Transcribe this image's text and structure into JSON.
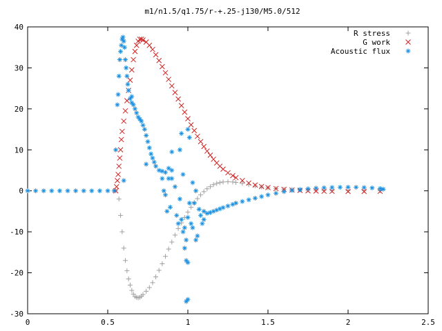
{
  "chart_data": {
    "type": "scatter",
    "title": "m1/n1.5/q1.75/r-+.25-j130/M5.0/512",
    "xlabel": "",
    "ylabel": "",
    "xlim": [
      0,
      2.5
    ],
    "ylim": [
      -30,
      40
    ],
    "xticks": [
      0,
      0.5,
      1,
      1.5,
      2,
      2.5
    ],
    "yticks": [
      -30,
      -20,
      -10,
      0,
      10,
      20,
      30,
      40
    ],
    "xtick_labels": [
      "0",
      "0.5",
      "1",
      "1.5",
      "2",
      "2.5"
    ],
    "ytick_labels": [
      "-30",
      "-20",
      "-10",
      "0",
      "10",
      "20",
      "30",
      "40"
    ],
    "grid": false,
    "legend": "top-right",
    "series": [
      {
        "name": "R stress",
        "marker": "+",
        "color": "#a0a0a0",
        "points": [
          [
            0.55,
            0
          ],
          [
            0.57,
            -2
          ],
          [
            0.58,
            -6
          ],
          [
            0.59,
            -10
          ],
          [
            0.6,
            -14
          ],
          [
            0.61,
            -17
          ],
          [
            0.62,
            -19.5
          ],
          [
            0.63,
            -21.5
          ],
          [
            0.64,
            -23
          ],
          [
            0.65,
            -24.3
          ],
          [
            0.66,
            -25.2
          ],
          [
            0.67,
            -25.8
          ],
          [
            0.68,
            -26
          ],
          [
            0.69,
            -26.1
          ],
          [
            0.7,
            -26
          ],
          [
            0.71,
            -25.7
          ],
          [
            0.72,
            -25.3
          ],
          [
            0.74,
            -24.5
          ],
          [
            0.76,
            -23.6
          ],
          [
            0.78,
            -22.4
          ],
          [
            0.8,
            -21
          ],
          [
            0.82,
            -19.4
          ],
          [
            0.84,
            -17.8
          ],
          [
            0.86,
            -16
          ],
          [
            0.88,
            -14.2
          ],
          [
            0.9,
            -12.5
          ],
          [
            0.92,
            -10.8
          ],
          [
            0.94,
            -9.2
          ],
          [
            0.96,
            -7.8
          ],
          [
            0.98,
            -6.5
          ],
          [
            1.0,
            -5.2
          ],
          [
            1.02,
            -4
          ],
          [
            1.04,
            -2.9
          ],
          [
            1.06,
            -1.9
          ],
          [
            1.08,
            -1
          ],
          [
            1.1,
            -0.2
          ],
          [
            1.12,
            0.5
          ],
          [
            1.14,
            1
          ],
          [
            1.16,
            1.5
          ],
          [
            1.18,
            1.8
          ],
          [
            1.2,
            2
          ],
          [
            1.22,
            2.15
          ],
          [
            1.25,
            2.2
          ],
          [
            1.28,
            2.15
          ],
          [
            1.3,
            2.05
          ],
          [
            1.34,
            1.8
          ],
          [
            1.38,
            1.5
          ],
          [
            1.42,
            1.2
          ],
          [
            1.46,
            0.95
          ],
          [
            1.5,
            0.75
          ],
          [
            1.55,
            0.55
          ],
          [
            1.6,
            0.4
          ],
          [
            1.65,
            0.3
          ],
          [
            1.7,
            0.2
          ],
          [
            1.75,
            0.15
          ],
          [
            1.8,
            0.1
          ],
          [
            1.85,
            0.08
          ],
          [
            1.9,
            0.05
          ],
          [
            2.0,
            0.03
          ],
          [
            2.1,
            0.02
          ],
          [
            2.2,
            0.01
          ]
        ]
      },
      {
        "name": "G work",
        "marker": "x",
        "color": "#d02020",
        "points": [
          [
            0.55,
            0
          ],
          [
            0.555,
            1
          ],
          [
            0.56,
            2.5
          ],
          [
            0.565,
            4
          ],
          [
            0.57,
            6
          ],
          [
            0.575,
            8
          ],
          [
            0.58,
            10
          ],
          [
            0.585,
            12.5
          ],
          [
            0.59,
            14.5
          ],
          [
            0.6,
            17
          ],
          [
            0.61,
            19.5
          ],
          [
            0.62,
            22
          ],
          [
            0.63,
            24.5
          ],
          [
            0.64,
            27
          ],
          [
            0.65,
            29.5
          ],
          [
            0.66,
            32
          ],
          [
            0.67,
            34
          ],
          [
            0.68,
            35.5
          ],
          [
            0.69,
            36.5
          ],
          [
            0.7,
            37
          ],
          [
            0.71,
            37
          ],
          [
            0.72,
            36.8
          ],
          [
            0.74,
            36.3
          ],
          [
            0.76,
            35.5
          ],
          [
            0.78,
            34.5
          ],
          [
            0.8,
            33.2
          ],
          [
            0.82,
            31.8
          ],
          [
            0.84,
            30.3
          ],
          [
            0.86,
            28.8
          ],
          [
            0.88,
            27.2
          ],
          [
            0.9,
            25.6
          ],
          [
            0.92,
            24
          ],
          [
            0.94,
            22.4
          ],
          [
            0.96,
            20.8
          ],
          [
            0.98,
            19.2
          ],
          [
            1.0,
            17.6
          ],
          [
            1.02,
            16.1
          ],
          [
            1.04,
            14.7
          ],
          [
            1.06,
            13.3
          ],
          [
            1.08,
            12
          ],
          [
            1.1,
            10.8
          ],
          [
            1.12,
            9.7
          ],
          [
            1.14,
            8.7
          ],
          [
            1.16,
            7.7
          ],
          [
            1.18,
            6.8
          ],
          [
            1.2,
            6
          ],
          [
            1.22,
            5.3
          ],
          [
            1.25,
            4.4
          ],
          [
            1.28,
            3.7
          ],
          [
            1.3,
            3.2
          ],
          [
            1.34,
            2.5
          ],
          [
            1.38,
            1.9
          ],
          [
            1.42,
            1.4
          ],
          [
            1.46,
            1.05
          ],
          [
            1.5,
            0.8
          ],
          [
            1.55,
            0.55
          ],
          [
            1.6,
            0.35
          ],
          [
            1.65,
            0.2
          ],
          [
            1.7,
            0.1
          ],
          [
            1.75,
            0
          ],
          [
            1.8,
            -0.05
          ],
          [
            1.85,
            -0.1
          ],
          [
            1.9,
            -0.12
          ],
          [
            2.0,
            -0.15
          ],
          [
            2.1,
            -0.15
          ],
          [
            2.2,
            -0.12
          ]
        ]
      },
      {
        "name": "Acoustic flux",
        "marker": "*",
        "color": "#1e90e0",
        "points": [
          [
            0.0,
            0
          ],
          [
            0.05,
            0
          ],
          [
            0.1,
            0
          ],
          [
            0.15,
            0
          ],
          [
            0.2,
            0
          ],
          [
            0.25,
            0
          ],
          [
            0.3,
            0
          ],
          [
            0.35,
            0
          ],
          [
            0.4,
            0
          ],
          [
            0.45,
            0
          ],
          [
            0.5,
            0
          ],
          [
            0.54,
            0
          ],
          [
            0.55,
            10
          ],
          [
            0.56,
            21
          ],
          [
            0.565,
            23.5
          ],
          [
            0.57,
            28
          ],
          [
            0.575,
            32
          ],
          [
            0.58,
            34
          ],
          [
            0.585,
            35.5
          ],
          [
            0.59,
            37
          ],
          [
            0.595,
            37.5
          ],
          [
            0.6,
            36.5
          ],
          [
            0.605,
            35
          ],
          [
            0.61,
            32
          ],
          [
            0.615,
            30
          ],
          [
            0.62,
            28
          ],
          [
            0.625,
            26
          ],
          [
            0.63,
            24.5
          ],
          [
            0.64,
            22.5
          ],
          [
            0.65,
            21.5
          ],
          [
            0.66,
            21
          ],
          [
            0.67,
            20
          ],
          [
            0.68,
            19
          ],
          [
            0.69,
            18
          ],
          [
            0.7,
            17.5
          ],
          [
            0.71,
            17
          ],
          [
            0.72,
            16
          ],
          [
            0.73,
            15
          ],
          [
            0.74,
            13.5
          ],
          [
            0.75,
            12
          ],
          [
            0.76,
            10.5
          ],
          [
            0.77,
            9
          ],
          [
            0.78,
            8
          ],
          [
            0.79,
            7
          ],
          [
            0.8,
            6
          ],
          [
            0.82,
            5
          ],
          [
            0.84,
            4.8
          ],
          [
            0.86,
            4.5
          ],
          [
            0.88,
            5.5
          ],
          [
            0.9,
            5
          ],
          [
            0.6,
            2.5
          ],
          [
            0.65,
            23
          ],
          [
            0.74,
            6.5
          ],
          [
            0.84,
            3
          ],
          [
            0.85,
            0
          ],
          [
            0.86,
            -1
          ],
          [
            0.87,
            -5
          ],
          [
            0.88,
            3
          ],
          [
            0.89,
            -4
          ],
          [
            0.9,
            9.5
          ],
          [
            0.9,
            3
          ],
          [
            0.92,
            1
          ],
          [
            0.93,
            -6
          ],
          [
            0.94,
            -8
          ],
          [
            0.95,
            -2
          ],
          [
            0.96,
            -7
          ],
          [
            0.97,
            -10
          ],
          [
            0.98,
            -9
          ],
          [
            0.98,
            -14
          ],
          [
            0.99,
            -12
          ],
          [
            0.99,
            -17
          ],
          [
            1.0,
            -6.5
          ],
          [
            1.0,
            -17.5
          ],
          [
            1.0,
            -26.5
          ],
          [
            0.99,
            -27
          ],
          [
            1.01,
            -3
          ],
          [
            1.02,
            -8
          ],
          [
            1.03,
            -9
          ],
          [
            1.04,
            -3
          ],
          [
            1.05,
            -12
          ],
          [
            1.06,
            -11
          ],
          [
            1.07,
            -4.5
          ],
          [
            1.08,
            -6
          ],
          [
            1.09,
            -8
          ],
          [
            1.1,
            -7
          ],
          [
            1.0,
            15
          ],
          [
            1.01,
            13
          ],
          [
            0.96,
            14
          ],
          [
            0.95,
            10
          ],
          [
            0.97,
            4
          ],
          [
            1.03,
            2
          ],
          [
            1.05,
            0
          ],
          [
            1.1,
            -5
          ],
          [
            1.12,
            -5.5
          ],
          [
            1.14,
            -5.3
          ],
          [
            1.16,
            -5
          ],
          [
            1.18,
            -4.7
          ],
          [
            1.2,
            -4.4
          ],
          [
            1.22,
            -4.1
          ],
          [
            1.25,
            -3.7
          ],
          [
            1.28,
            -3.3
          ],
          [
            1.3,
            -3
          ],
          [
            1.34,
            -2.6
          ],
          [
            1.38,
            -2.2
          ],
          [
            1.42,
            -1.8
          ],
          [
            1.46,
            -1.4
          ],
          [
            1.5,
            -1.0
          ],
          [
            1.55,
            -0.6
          ],
          [
            1.6,
            -0.2
          ],
          [
            1.65,
            0.1
          ],
          [
            1.7,
            0.3
          ],
          [
            1.75,
            0.5
          ],
          [
            1.8,
            0.65
          ],
          [
            1.85,
            0.75
          ],
          [
            1.9,
            0.82
          ],
          [
            1.95,
            0.86
          ],
          [
            2.0,
            0.88
          ],
          [
            2.05,
            0.86
          ],
          [
            2.1,
            0.8
          ],
          [
            2.15,
            0.7
          ],
          [
            2.2,
            0.55
          ],
          [
            2.22,
            0.4
          ]
        ]
      }
    ]
  }
}
